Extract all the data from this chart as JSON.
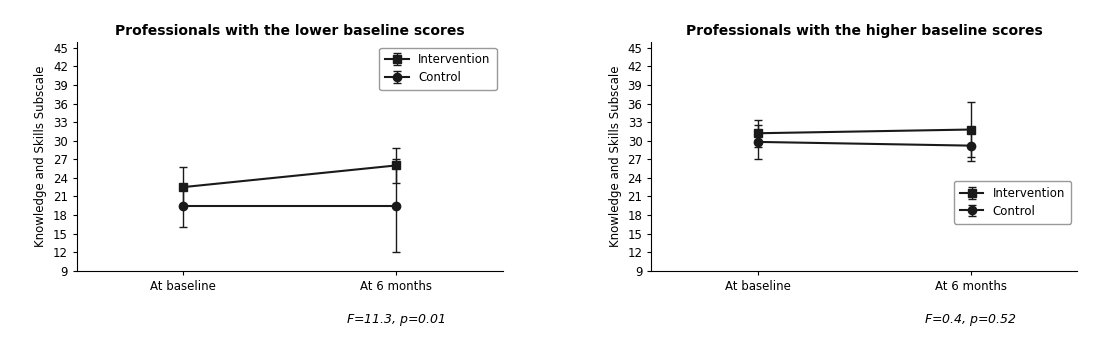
{
  "left": {
    "title": "Professionals with the lower baseline scores",
    "intervention": {
      "baseline": 22.5,
      "months6": 26.0
    },
    "control": {
      "baseline": 19.5,
      "months6": 19.5
    },
    "intervention_err": {
      "baseline": 3.2,
      "months6": 2.8
    },
    "control_err": {
      "baseline": 3.5,
      "months6": 7.5
    },
    "stat_label": "F=11.3, p=0.01"
  },
  "right": {
    "title": "Professionals with the higher baseline scores",
    "intervention": {
      "baseline": 31.2,
      "months6": 31.8
    },
    "control": {
      "baseline": 29.8,
      "months6": 29.2
    },
    "intervention_err": {
      "baseline": 2.2,
      "months6": 4.5
    },
    "control_err": {
      "baseline": 2.8,
      "months6": 2.5
    },
    "stat_label": "F=0.4, p=0.52"
  },
  "ylabel": "Knowledge and Skills Subscale",
  "xtick_labels": [
    "At baseline",
    "At 6 months"
  ],
  "yticks": [
    9,
    12,
    15,
    18,
    21,
    24,
    27,
    30,
    33,
    36,
    39,
    42,
    45
  ],
  "ylim": [
    9,
    46
  ],
  "line_color": "#1a1a1a",
  "marker_intervention": "s",
  "marker_control": "o",
  "marker_size": 6,
  "line_width": 1.5,
  "legend_labels": [
    "Intervention",
    "Control"
  ],
  "background_color": "#ffffff",
  "font_size_title": 10,
  "font_size_axis": 8.5,
  "font_size_ticks": 8.5,
  "font_size_legend": 8.5,
  "font_size_stat": 9
}
